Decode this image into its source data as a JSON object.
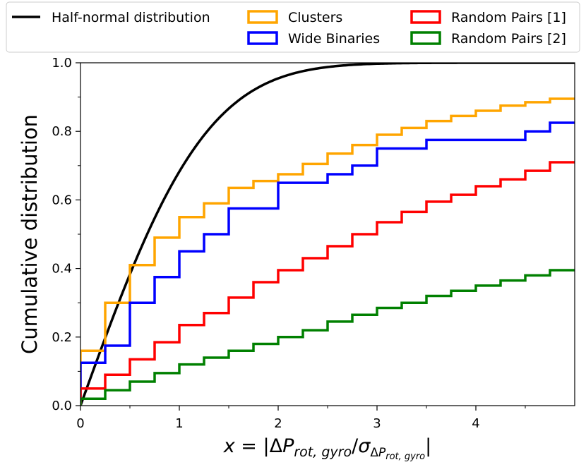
{
  "chart_data": {
    "type": "line",
    "title": "",
    "xlabel": "x = |ΔP_rot,gyro / σ_ΔP_rot,gyro|",
    "ylabel": "Cumulative distribution",
    "xlim": [
      0,
      5
    ],
    "ylim": [
      0,
      1
    ],
    "xticks": [
      0,
      1,
      2,
      3,
      4
    ],
    "xtick_labels": [
      "0",
      "1",
      "2",
      "3",
      "4"
    ],
    "yticks": [
      0.0,
      0.2,
      0.4,
      0.6,
      0.8,
      1.0
    ],
    "ytick_labels": [
      "0.0",
      "0.2",
      "0.4",
      "0.6",
      "0.8",
      "1.0"
    ],
    "grid": false,
    "legend_position": "top",
    "series": [
      {
        "name": "Half-normal distribution",
        "kind": "curve",
        "function": "erf(x/sqrt(2))",
        "color": "#000000"
      },
      {
        "name": "Clusters",
        "kind": "step",
        "color": "#ffa500",
        "edges": [
          0,
          0.25,
          0.5,
          0.75,
          1.0,
          1.25,
          1.5,
          1.75,
          2.0,
          2.25,
          2.5,
          2.75,
          3.0,
          3.25,
          3.5,
          3.75,
          4.0,
          4.25,
          4.5,
          4.75,
          5.0
        ],
        "values": [
          0.16,
          0.3,
          0.41,
          0.49,
          0.55,
          0.59,
          0.635,
          0.655,
          0.675,
          0.705,
          0.735,
          0.76,
          0.79,
          0.81,
          0.83,
          0.845,
          0.86,
          0.875,
          0.885,
          0.895
        ]
      },
      {
        "name": "Wide Binaries",
        "kind": "step",
        "color": "#0000ff",
        "edges": [
          0,
          0.25,
          0.5,
          0.75,
          1.0,
          1.25,
          1.5,
          2.0,
          2.5,
          2.75,
          3.0,
          3.5,
          4.5,
          4.75,
          5.0
        ],
        "values": [
          0.125,
          0.175,
          0.3,
          0.375,
          0.45,
          0.5,
          0.575,
          0.65,
          0.675,
          0.7,
          0.75,
          0.775,
          0.8,
          0.825
        ]
      },
      {
        "name": "Random Pairs [1]",
        "kind": "step",
        "color": "#ff0000",
        "edges": [
          0,
          0.25,
          0.5,
          0.75,
          1.0,
          1.25,
          1.5,
          1.75,
          2.0,
          2.25,
          2.5,
          2.75,
          3.0,
          3.25,
          3.5,
          3.75,
          4.0,
          4.25,
          4.5,
          4.75,
          5.0
        ],
        "values": [
          0.05,
          0.09,
          0.135,
          0.185,
          0.235,
          0.27,
          0.315,
          0.36,
          0.395,
          0.43,
          0.465,
          0.5,
          0.535,
          0.565,
          0.595,
          0.615,
          0.64,
          0.66,
          0.685,
          0.71
        ]
      },
      {
        "name": "Random Pairs [2]",
        "kind": "step",
        "color": "#008000",
        "edges": [
          0,
          0.25,
          0.5,
          0.75,
          1.0,
          1.25,
          1.5,
          1.75,
          2.0,
          2.25,
          2.5,
          2.75,
          3.0,
          3.25,
          3.5,
          3.75,
          4.0,
          4.25,
          4.5,
          4.75,
          5.0
        ],
        "values": [
          0.02,
          0.045,
          0.07,
          0.095,
          0.12,
          0.14,
          0.16,
          0.18,
          0.2,
          0.22,
          0.245,
          0.265,
          0.285,
          0.3,
          0.32,
          0.335,
          0.35,
          0.365,
          0.38,
          0.395
        ]
      }
    ],
    "legend": [
      {
        "label": "Half-normal distribution",
        "color": "#000000"
      },
      {
        "label": "Clusters",
        "color": "#ffa500"
      },
      {
        "label": "Random Pairs [1]",
        "color": "#ff0000"
      },
      {
        "label": "Wide Binaries",
        "color": "#0000ff"
      },
      {
        "label": "Random Pairs [2]",
        "color": "#008000"
      }
    ]
  }
}
